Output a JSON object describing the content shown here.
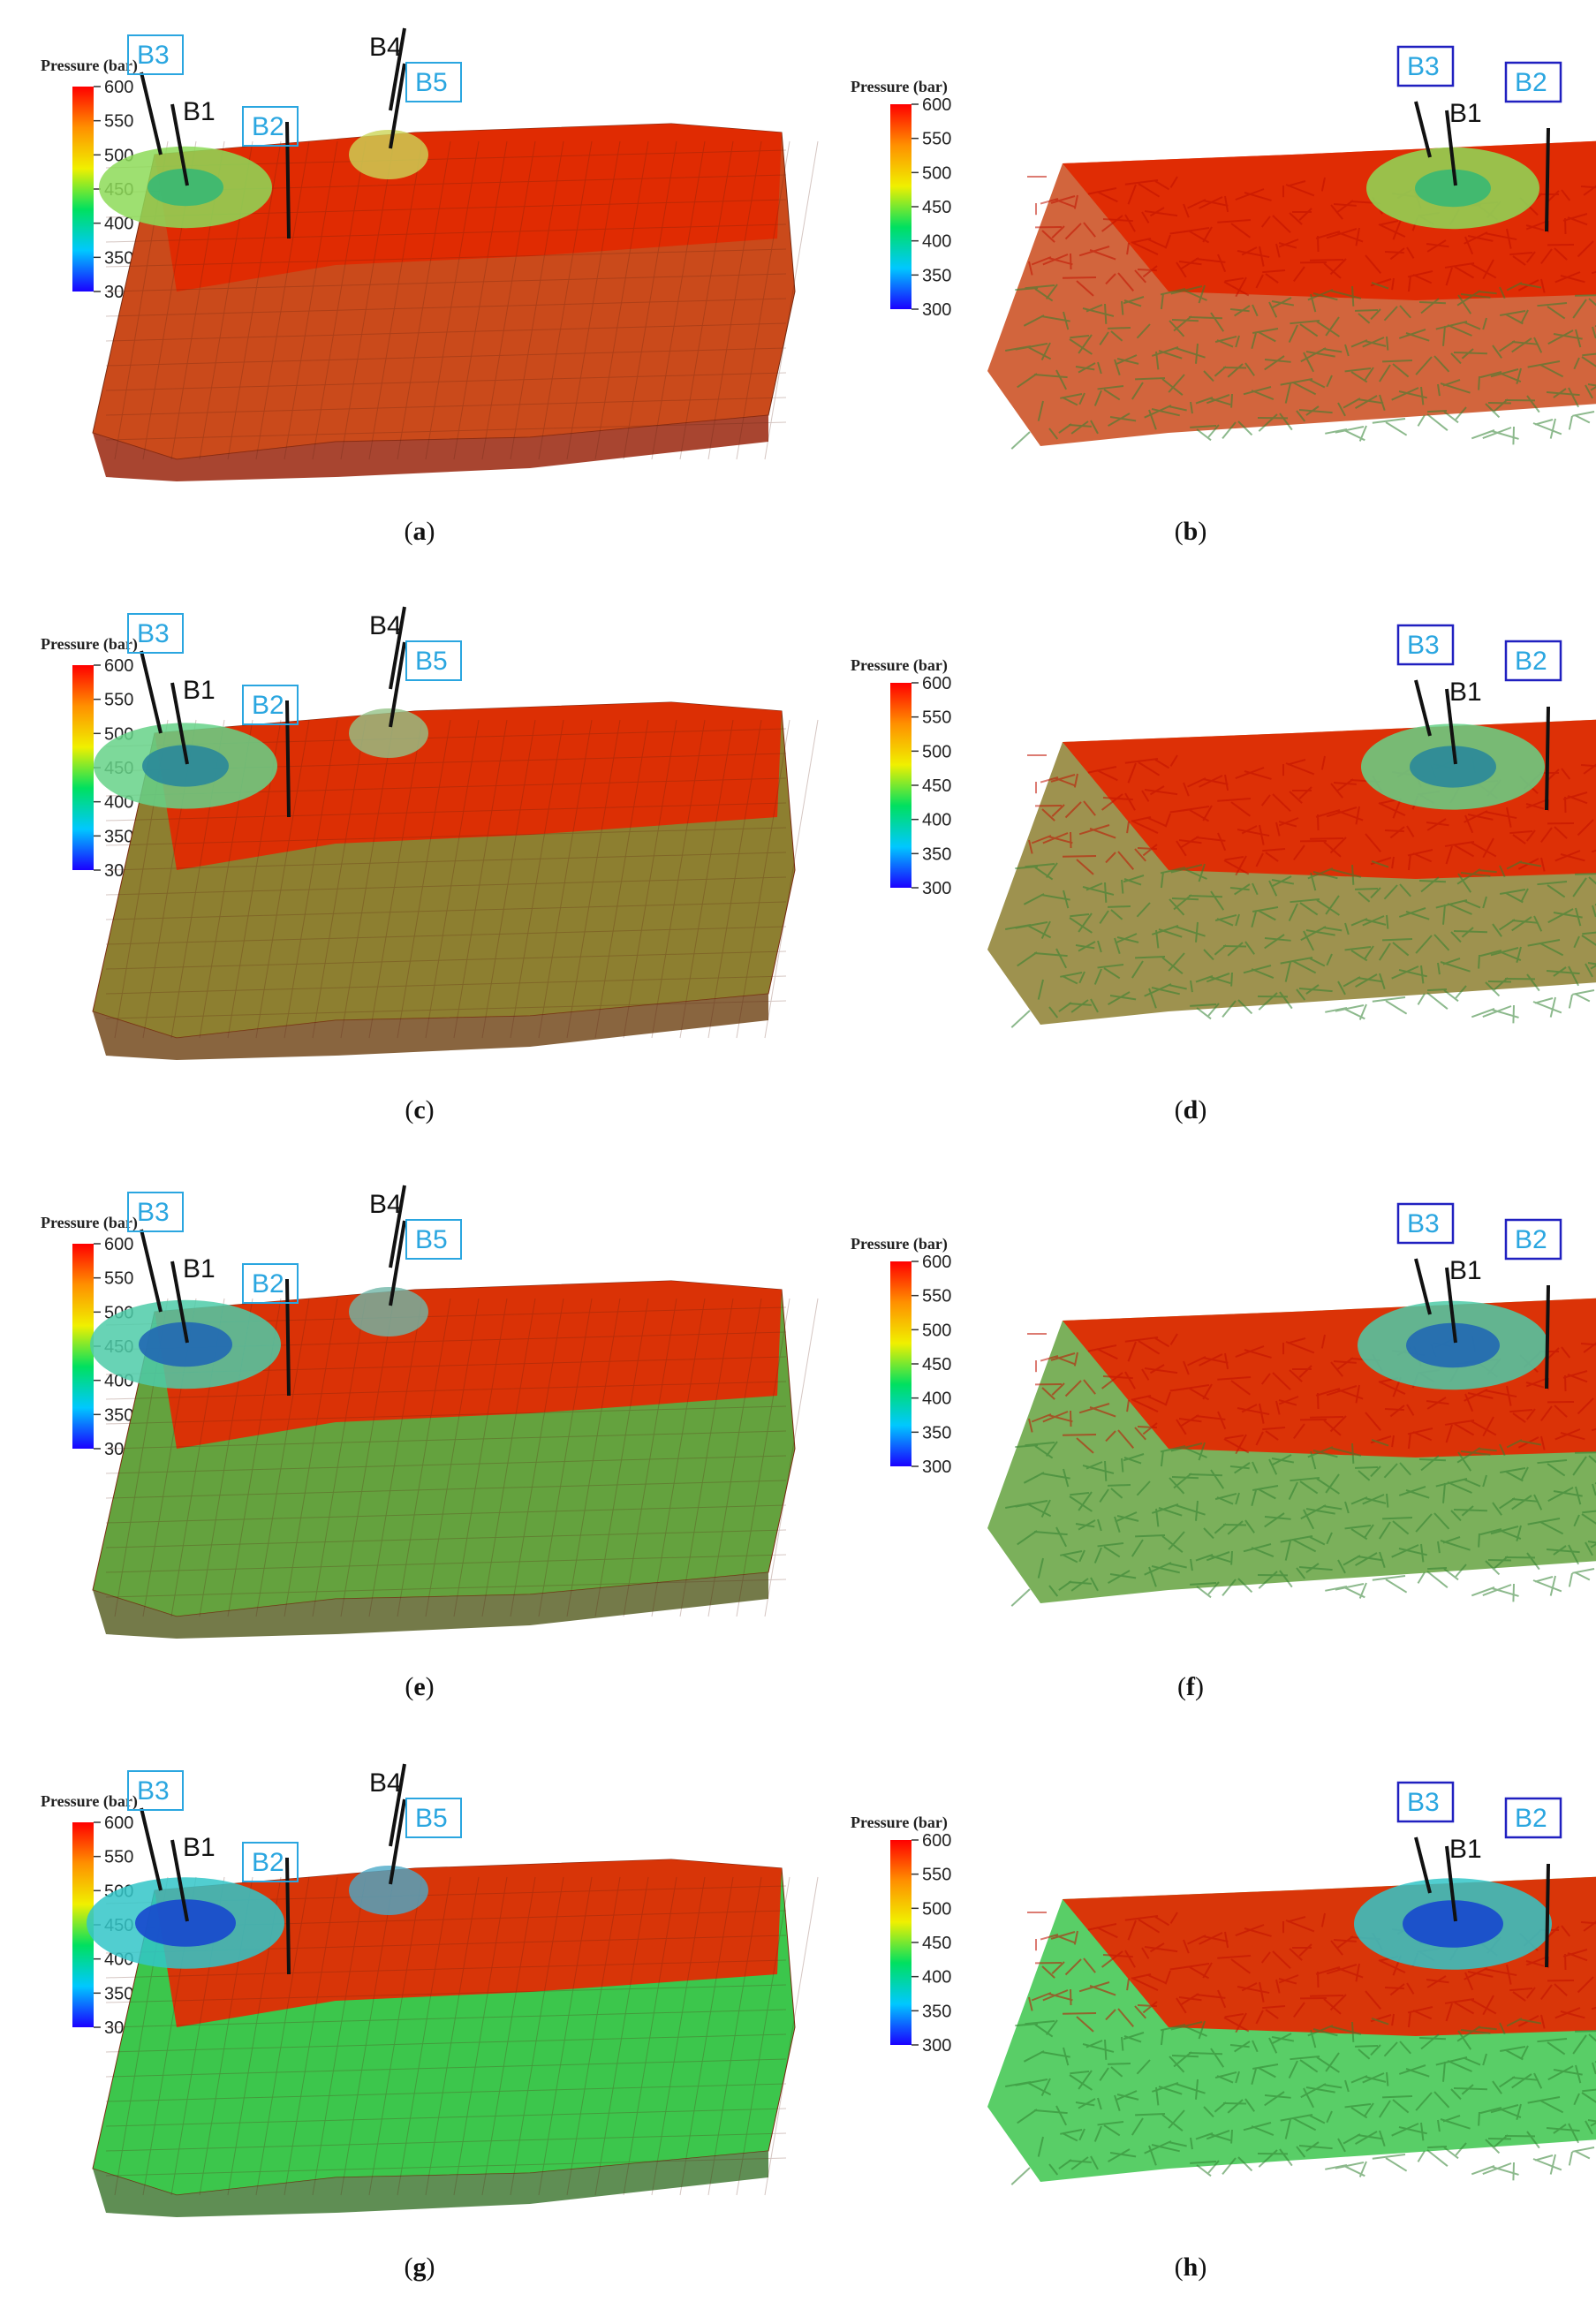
{
  "colorbar": {
    "title": "Pressure (bar)",
    "ticks": [
      "600",
      "550",
      "500",
      "450",
      "400",
      "350",
      "300"
    ],
    "colors": [
      "#1a00ff",
      "#00c8ff",
      "#00e060",
      "#f0f000",
      "#ff9000",
      "#ff0000"
    ]
  },
  "wells": {
    "b1": "B1",
    "b2": "B2",
    "b3": "B3",
    "b4": "B4",
    "b5": "B5"
  },
  "panels": [
    {
      "caption": "a",
      "style": "solid",
      "low_pressure_level": 0.15
    },
    {
      "caption": "b",
      "style": "vector",
      "low_pressure_level": 0.15
    },
    {
      "caption": "c",
      "style": "solid",
      "low_pressure_level": 0.45
    },
    {
      "caption": "d",
      "style": "vector",
      "low_pressure_level": 0.45
    },
    {
      "caption": "e",
      "style": "solid",
      "low_pressure_level": 0.65
    },
    {
      "caption": "f",
      "style": "vector",
      "low_pressure_level": 0.65
    },
    {
      "caption": "g",
      "style": "solid",
      "low_pressure_level": 0.85
    },
    {
      "caption": "h",
      "style": "vector",
      "low_pressure_level": 0.85
    }
  ]
}
